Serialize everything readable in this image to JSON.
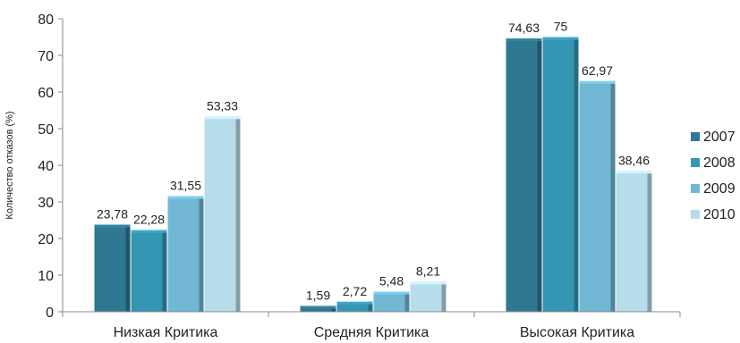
{
  "chart_data": {
    "type": "bar",
    "ylabel": "Количество отказов (%)",
    "ylim": [
      0,
      80
    ],
    "yticks": [
      0,
      10,
      20,
      30,
      40,
      50,
      60,
      70,
      80
    ],
    "grid": false,
    "legend_position": "right",
    "categories": [
      "Низкая Критика",
      "Средняя Критика",
      "Высокая Критика"
    ],
    "series": [
      {
        "name": "2007",
        "color": "#2E7891",
        "labels": [
          "23,78",
          "1,59",
          "74,63"
        ],
        "values": [
          23.78,
          1.59,
          74.63
        ]
      },
      {
        "name": "2008",
        "color": "#3596B4",
        "labels": [
          "22,28",
          "2,72",
          "75"
        ],
        "values": [
          22.28,
          2.72,
          75
        ]
      },
      {
        "name": "2009",
        "color": "#72B8D4",
        "labels": [
          "31,55",
          "5,48",
          "62,97"
        ],
        "values": [
          31.55,
          5.48,
          62.97
        ]
      },
      {
        "name": "2010",
        "color": "#B7DCEA",
        "labels": [
          "53,33",
          "8,21",
          "38,46"
        ],
        "values": [
          53.33,
          8.21,
          38.46
        ]
      }
    ]
  }
}
